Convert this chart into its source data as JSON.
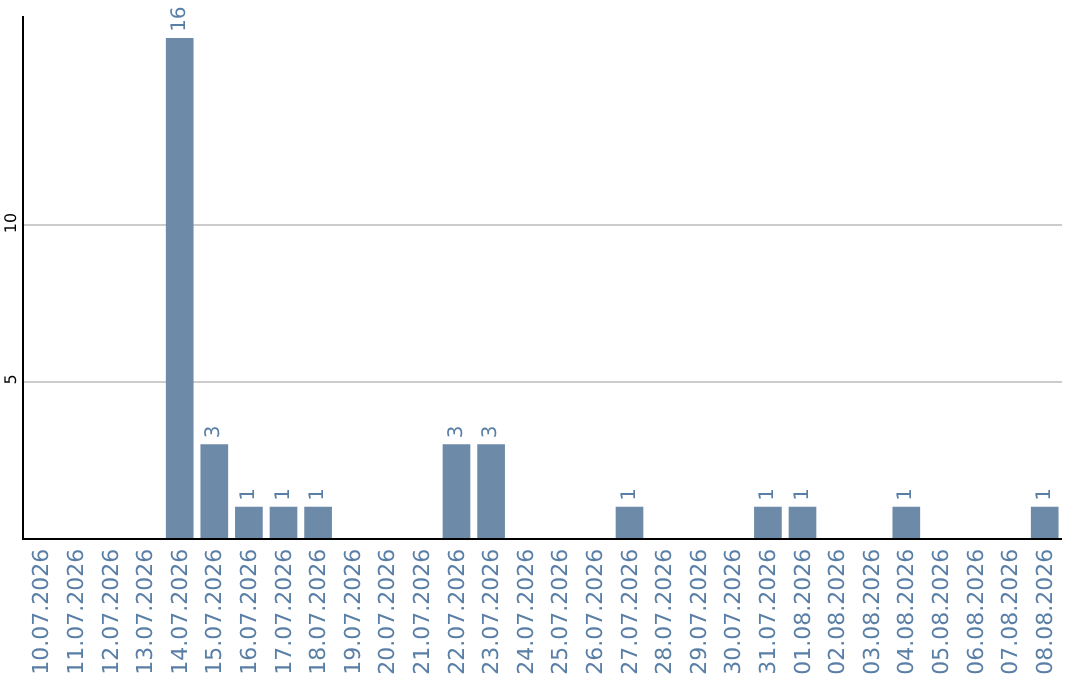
{
  "chart_data": {
    "type": "bar",
    "categories": [
      "10.07.2026",
      "11.07.2026",
      "12.07.2026",
      "13.07.2026",
      "14.07.2026",
      "15.07.2026",
      "16.07.2026",
      "17.07.2026",
      "18.07.2026",
      "19.07.2026",
      "20.07.2026",
      "21.07.2026",
      "22.07.2026",
      "23.07.2026",
      "24.07.2026",
      "25.07.2026",
      "26.07.2026",
      "27.07.2026",
      "28.07.2026",
      "29.07.2026",
      "30.07.2026",
      "31.07.2026",
      "01.08.2026",
      "02.08.2026",
      "03.08.2026",
      "04.08.2026",
      "05.08.2026",
      "06.08.2026",
      "07.08.2026",
      "08.08.2026"
    ],
    "values": [
      0,
      0,
      0,
      0,
      16,
      3,
      1,
      1,
      1,
      0,
      0,
      0,
      3,
      3,
      0,
      0,
      0,
      1,
      0,
      0,
      0,
      1,
      1,
      0,
      0,
      1,
      0,
      0,
      0,
      1
    ],
    "value_labels": [
      null,
      null,
      null,
      null,
      "16",
      "3",
      "1",
      "1",
      "1",
      null,
      null,
      null,
      "3",
      "3",
      null,
      null,
      null,
      "1",
      null,
      null,
      null,
      "1",
      "1",
      null,
      null,
      "1",
      null,
      null,
      null,
      "1"
    ],
    "color": "#6d8aa8",
    "ylim": [
      0,
      16.7
    ],
    "yticks": [
      5,
      10
    ],
    "grid": "y"
  }
}
